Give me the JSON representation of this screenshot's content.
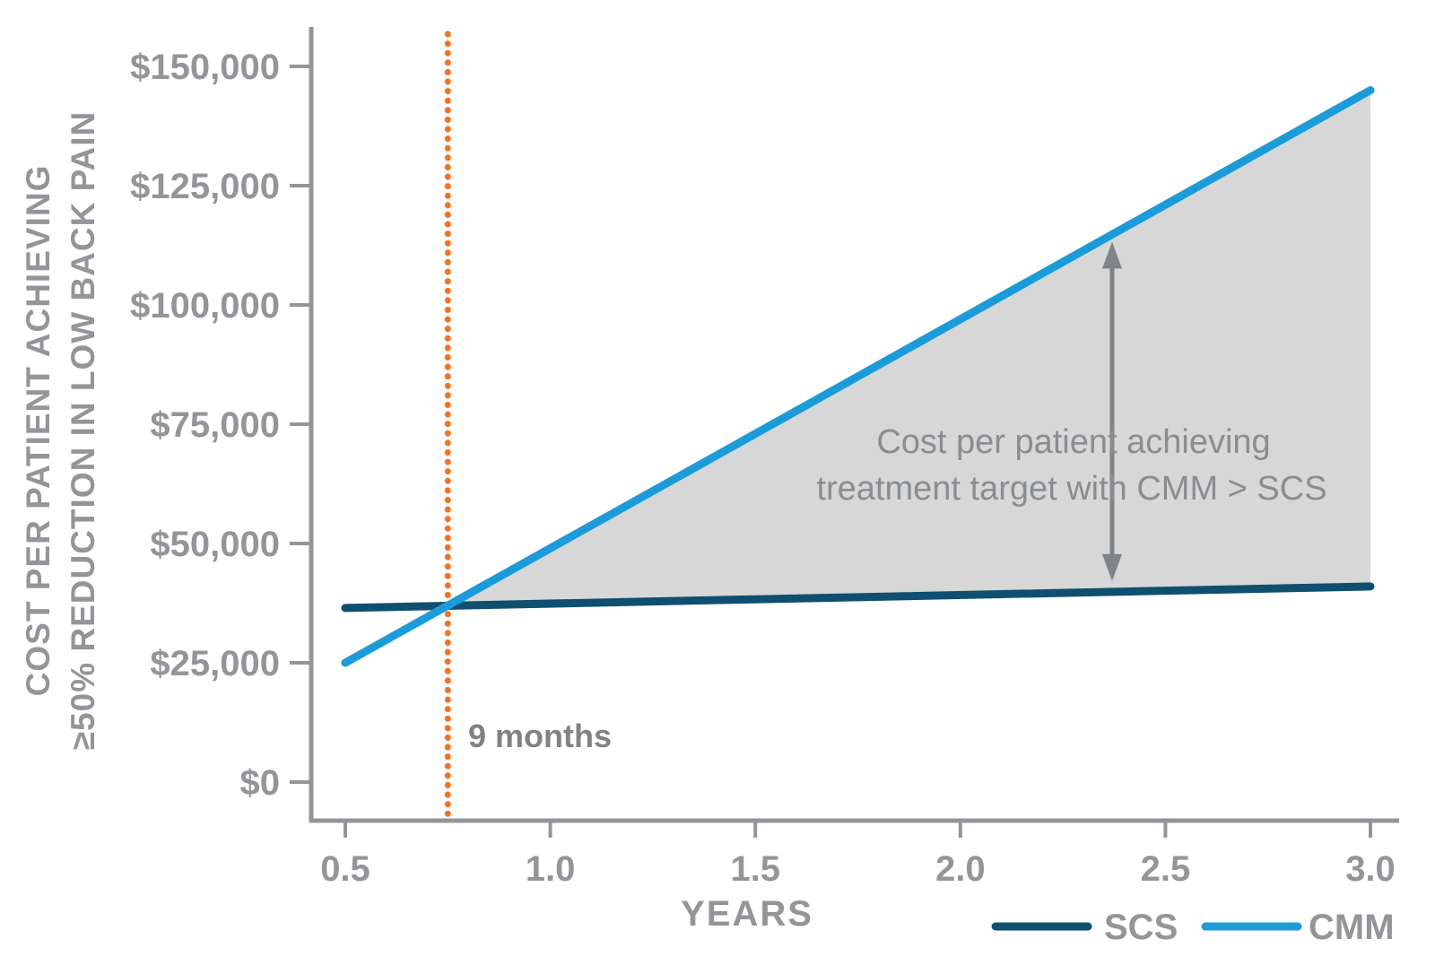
{
  "chart_data": {
    "type": "line",
    "title": "",
    "xlabel": "YEARS",
    "ylabel_lines": [
      "COST PER PATIENT ACHIEVING",
      "≥50% REDUCTION IN LOW BACK PAIN"
    ],
    "xlim": [
      0.5,
      3.0
    ],
    "ylim": [
      0,
      150000
    ],
    "x_ticks": [
      0.5,
      1.0,
      1.5,
      2.0,
      2.5,
      3.0
    ],
    "x_tick_labels": [
      "0.5",
      "1.0",
      "1.5",
      "2.0",
      "2.5",
      "3.0"
    ],
    "y_ticks": [
      0,
      25000,
      50000,
      75000,
      100000,
      125000,
      150000
    ],
    "y_tick_labels": [
      "$0",
      "$25,000",
      "$50,000",
      "$75,000",
      "$100,000",
      "$125,000",
      "$150,000"
    ],
    "grid": false,
    "series": [
      {
        "name": "SCS",
        "color": "#0f4f70",
        "x": [
          0.5,
          3.0
        ],
        "values": [
          36500,
          41000
        ]
      },
      {
        "name": "CMM",
        "color": "#1b9cd9",
        "x": [
          0.5,
          3.0
        ],
        "values": [
          25000,
          145000
        ]
      }
    ],
    "crossover": {
      "x_year": 0.75,
      "label": "9 months",
      "line_color": "#f4731f",
      "line_style": "dotted"
    },
    "shaded_region": {
      "between": [
        "CMM",
        "SCS"
      ],
      "from_x_year": 0.75,
      "to_x_year": 3.0,
      "color": "#d7d7d8"
    },
    "annotation": {
      "lines": [
        "Cost per patient achieving",
        "treatment target with CMM > SCS"
      ],
      "arrow": {
        "x_year": 2.37,
        "style": "double-headed-vertical",
        "color": "#808487"
      }
    },
    "legend": {
      "position": "bottom-right",
      "entries": [
        "SCS",
        "CMM"
      ]
    }
  },
  "colors": {
    "axis": "#939598",
    "tick_text": "#939598",
    "annotation_text": "#8a8d90",
    "nine_months_text": "#808285",
    "scs": "#0f4f70",
    "cmm": "#1b9cd9",
    "crossover_line": "#f4731f",
    "shaded_region": "#d7d7d8",
    "arrow": "#808487",
    "background": "#ffffff"
  }
}
